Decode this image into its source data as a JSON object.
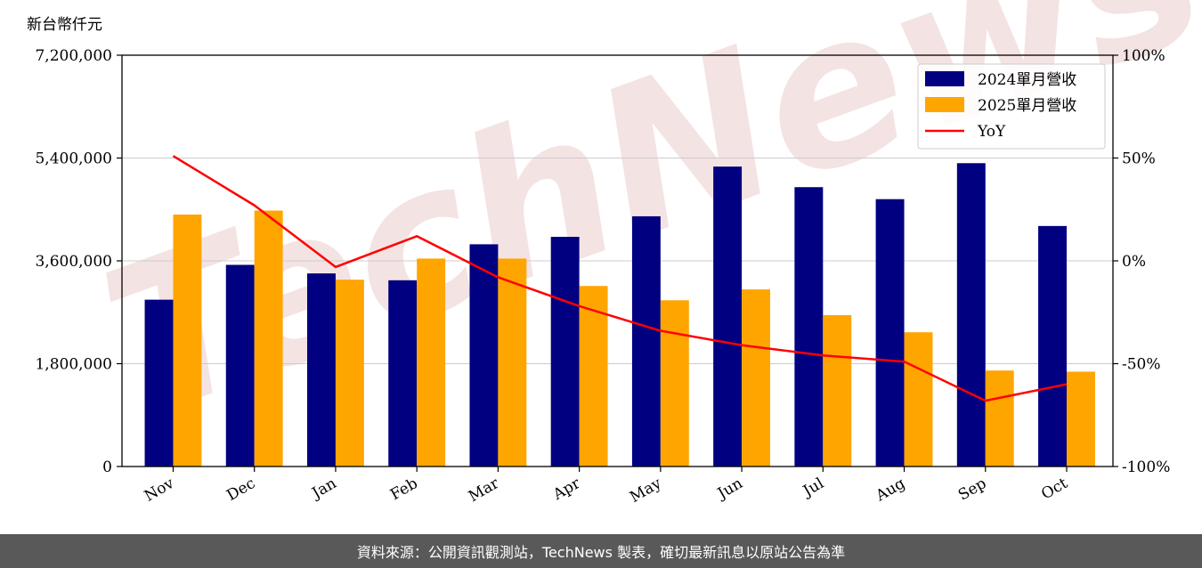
{
  "chart_data": {
    "type": "bar",
    "unit_label": "新台幣仟元",
    "categories": [
      "Nov",
      "Dec",
      "Jan",
      "Feb",
      "Mar",
      "Apr",
      "May",
      "Jun",
      "Jul",
      "Aug",
      "Sep",
      "Oct"
    ],
    "series": [
      {
        "name": "2024單月營收",
        "type": "bar",
        "axis": "left",
        "color": "#000080",
        "values": [
          2920000,
          3530000,
          3380000,
          3260000,
          3890000,
          4020000,
          4380000,
          5250000,
          4890000,
          4680000,
          5310000,
          4210000
        ]
      },
      {
        "name": "2025單月營收",
        "type": "bar",
        "axis": "left",
        "color": "#FFA500",
        "values": [
          4410000,
          4480000,
          3270000,
          3640000,
          3640000,
          3160000,
          2910000,
          3100000,
          2650000,
          2350000,
          1680000,
          1660000
        ]
      },
      {
        "name": "YoY",
        "type": "line",
        "axis": "right",
        "color": "#ff0000",
        "values": [
          51,
          27,
          -3,
          12,
          -8,
          -22,
          -34,
          -41,
          -46,
          -49,
          -68,
          -60
        ]
      }
    ],
    "y_left": {
      "lim": [
        0,
        7200000
      ],
      "ticks": [
        0,
        1800000,
        3600000,
        5400000,
        7200000
      ],
      "tick_labels": [
        "0",
        "1,800,000",
        "3,600,000",
        "5,400,000",
        "7,200,000"
      ]
    },
    "y_right": {
      "lim": [
        -100,
        100
      ],
      "ticks": [
        -100,
        -50,
        0,
        50,
        100
      ],
      "tick_labels": [
        "-100%",
        "-50%",
        "0%",
        "50%",
        "100%"
      ]
    },
    "grid": true,
    "legend": "top-right"
  },
  "watermark": "TechNews",
  "footer": {
    "text": "資料來源：公開資訊觀測站，TechNews 製表，確切最新訊息以原站公告為準"
  }
}
